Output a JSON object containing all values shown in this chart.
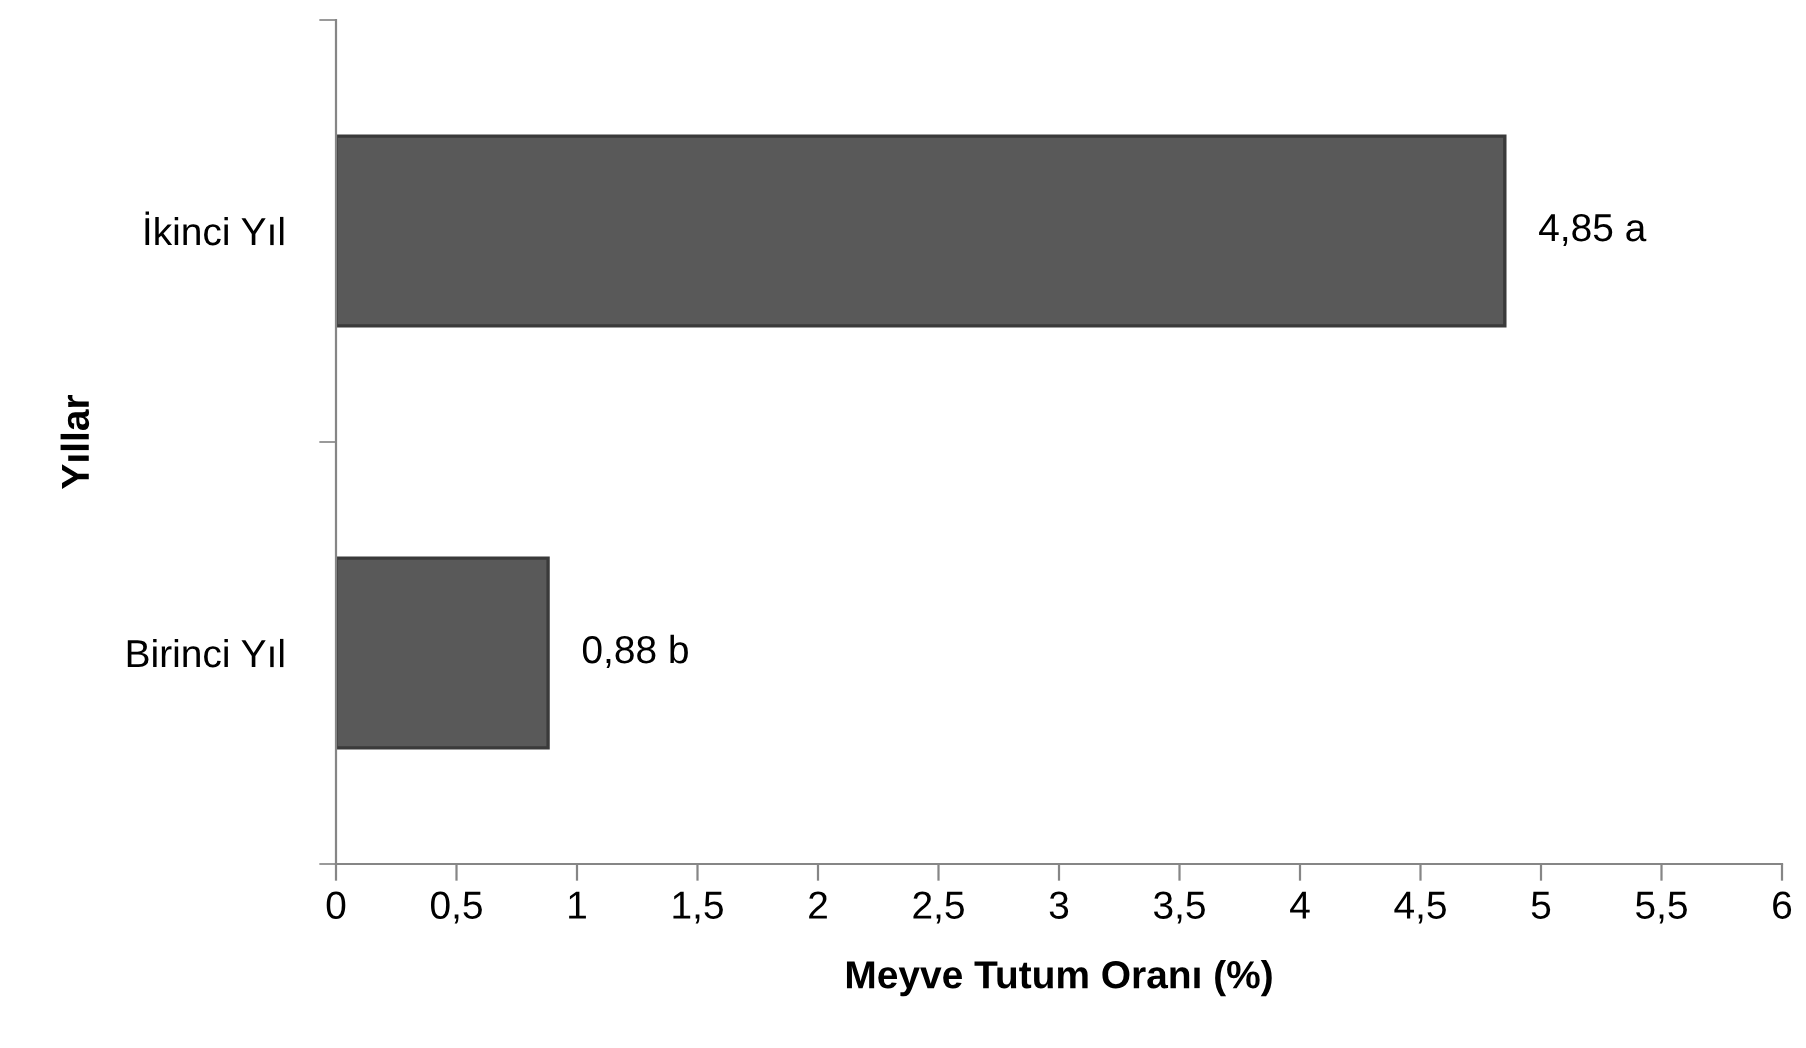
{
  "chart_data": {
    "type": "bar",
    "orientation": "horizontal",
    "xlabel": "Meyve Tutum Oranı (%)",
    "ylabel": "Yıllar",
    "categories": [
      "İkinci Yıl",
      "Birinci Yıl"
    ],
    "values": [
      4.85,
      0.88
    ],
    "value_labels": [
      "4,85 a",
      "0,88 b"
    ],
    "color": "#595959",
    "xlim": [
      0,
      6
    ],
    "xticks": [
      0,
      {
        "value": 0.5,
        "label": "0,5"
      },
      1,
      {
        "value": 1.5,
        "label": "1,5"
      },
      2,
      {
        "value": 2.5,
        "label": "2,5"
      },
      3,
      {
        "value": 3.5,
        "label": "3,5"
      },
      4,
      {
        "value": 4.5,
        "label": "4,5"
      },
      5,
      {
        "value": 5.5,
        "label": "5,5"
      },
      6
    ],
    "grid": false,
    "legend": false
  }
}
